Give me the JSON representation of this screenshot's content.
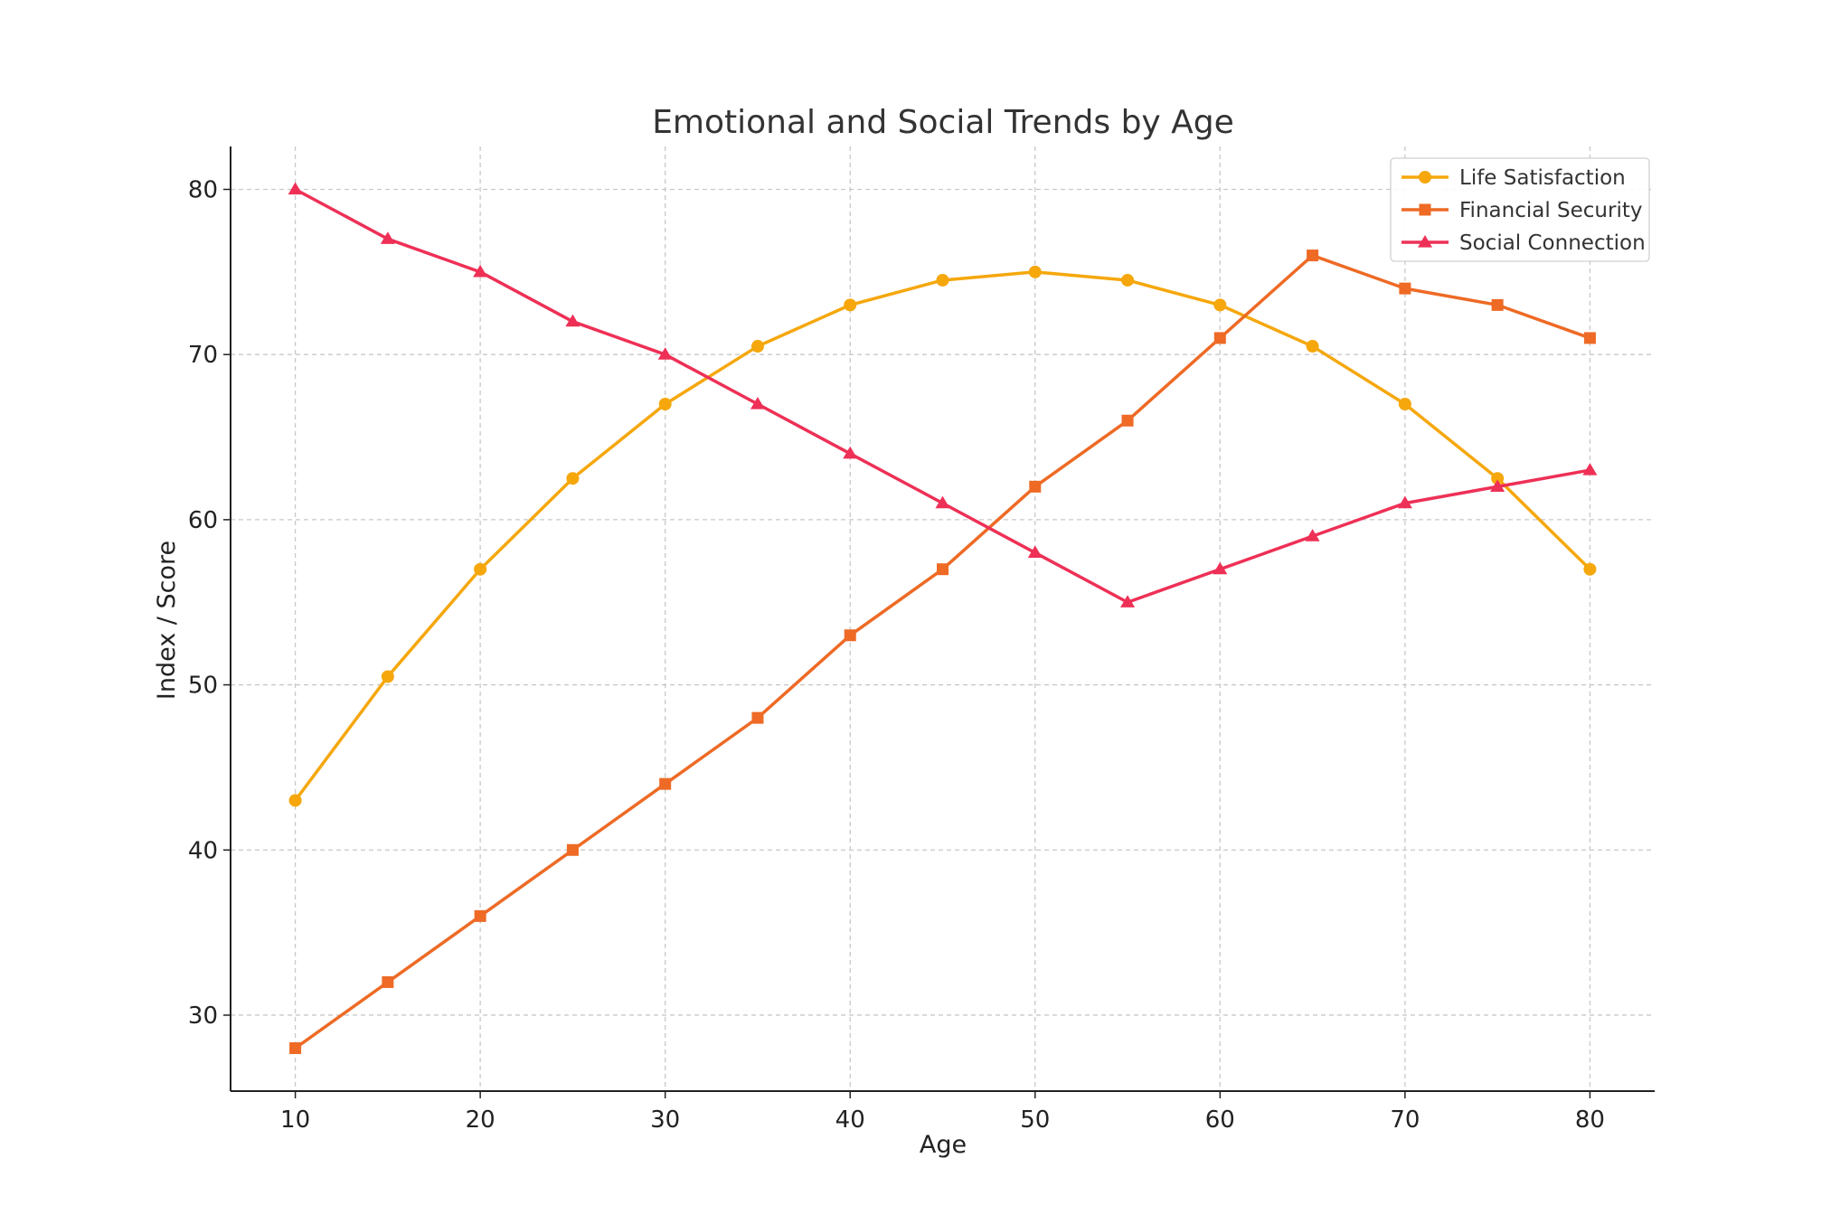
{
  "chart_data": {
    "type": "line",
    "title": "Emotional and Social Trends by Age",
    "xlabel": "Age",
    "ylabel": "Index / Score",
    "x": [
      10,
      15,
      20,
      25,
      30,
      35,
      40,
      45,
      50,
      55,
      60,
      65,
      70,
      75,
      80
    ],
    "xlim": [
      6.5,
      83.5
    ],
    "ylim": [
      25.4,
      82.6
    ],
    "xticks": [
      10,
      20,
      30,
      40,
      50,
      60,
      70,
      80
    ],
    "yticks": [
      30,
      40,
      50,
      60,
      70,
      80
    ],
    "grid": true,
    "legend_position": "top-right",
    "series": [
      {
        "name": "Life Satisfaction",
        "color": "#f5a70c",
        "marker": "circle",
        "values": [
          43,
          50.5,
          57,
          62.5,
          67,
          70.5,
          73,
          74.5,
          75,
          74.5,
          73,
          70.5,
          67,
          62.5,
          57
        ]
      },
      {
        "name": "Financial Security",
        "color": "#ee6a25",
        "marker": "square",
        "values": [
          28,
          32,
          36,
          40,
          44,
          48,
          53,
          57,
          62,
          66,
          71,
          76,
          74,
          73,
          71
        ]
      },
      {
        "name": "Social Connection",
        "color": "#ee3056",
        "marker": "triangle",
        "values": [
          80,
          77,
          75,
          72,
          70,
          67,
          64,
          61,
          58,
          55,
          57,
          59,
          61,
          62,
          63
        ]
      }
    ]
  }
}
